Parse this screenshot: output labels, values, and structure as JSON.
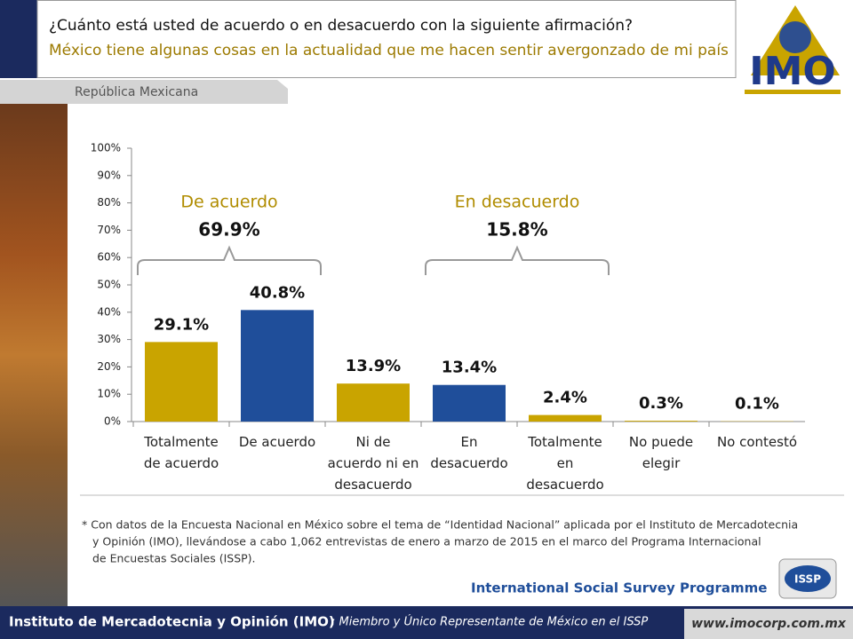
{
  "header": {
    "question": "¿Cuánto está usted de acuerdo o en desacuerdo con la siguiente afirmación?",
    "statement": "México tiene algunas cosas en la actualidad que me hacen sentir avergonzado de mi país",
    "region": "República Mexicana",
    "logo": "IMO"
  },
  "chart_data": {
    "type": "bar",
    "categories": [
      "Totalmente de acuerdo",
      "De acuerdo",
      "Ni de acuerdo ni en desacuerdo",
      "En desacuerdo",
      "Totalmente en desacuerdo",
      "No puede elegir",
      "No contestó"
    ],
    "values": [
      29.1,
      40.8,
      13.9,
      13.4,
      2.4,
      0.3,
      0.1
    ],
    "value_labels": [
      "29.1%",
      "40.8%",
      "13.9%",
      "13.4%",
      "2.4%",
      "0.3%",
      "0.1%"
    ],
    "colors": [
      "#C9A400",
      "#1F4E9A",
      "#C9A400",
      "#1F4E9A",
      "#C9A400",
      "#C9A400",
      "#C9A400"
    ],
    "ylim": [
      0,
      100
    ],
    "yticks": [
      {
        "value": 0,
        "label": "0%"
      },
      {
        "value": 10,
        "label": "10%"
      },
      {
        "value": 20,
        "label": "20%"
      },
      {
        "value": 30,
        "label": "30%"
      },
      {
        "value": 40,
        "label": "40%"
      },
      {
        "value": 50,
        "label": "50%"
      },
      {
        "value": 60,
        "label": "60%"
      },
      {
        "value": 70,
        "label": "70%"
      },
      {
        "value": 80,
        "label": "80%"
      },
      {
        "value": 90,
        "label": "90%"
      },
      {
        "value": 100,
        "label": "100%"
      }
    ],
    "annotations": [
      {
        "label": "De acuerdo",
        "total": "69.9%"
      },
      {
        "label": "En desacuerdo",
        "total": "15.8%"
      }
    ]
  },
  "footnote": [
    "* Con datos de la Encuesta Nacional en México sobre el tema de “Identidad Nacional” aplicada por el Instituto de Mercadotecnia",
    "y  Opinión (IMO), llevándose a cabo 1,062 entrevistas de enero a marzo de 2015 en el marco del Programa Internacional",
    "de Encuestas Sociales (ISSP)."
  ],
  "footer": {
    "programme": "International Social Survey Programme",
    "issp": "ISSP",
    "institute": "Instituto de Mercadotecnia y Opinión (IMO)",
    "member": ": Miembro  y Único Representante de México en el ISSP",
    "url": "www.imocorp.com.mx"
  }
}
